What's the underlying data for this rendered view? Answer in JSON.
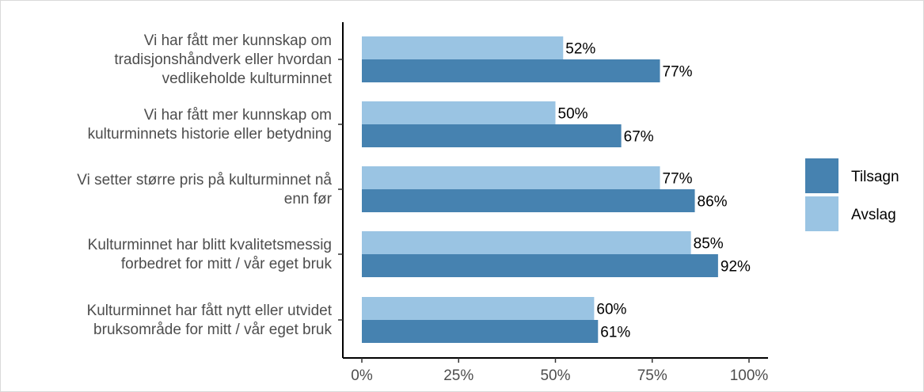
{
  "chart_data": {
    "type": "bar",
    "orientation": "horizontal",
    "title": "",
    "xlabel": "",
    "ylabel": "",
    "categories": [
      [
        "Vi har fått mer kunnskap om",
        "tradisjonshåndverk eller hvordan",
        "vedlikeholde kulturminnet"
      ],
      [
        "Vi har fått mer kunnskap om",
        "kulturminnets historie eller betydning"
      ],
      [
        "Vi setter større pris på kulturminnet nå",
        "enn før"
      ],
      [
        "Kulturminnet har blitt kvalitetsmessig",
        "forbedret for mitt / vår eget bruk"
      ],
      [
        "Kulturminnet har fått nytt eller utvidet",
        "bruksområde for mitt / vår eget bruk"
      ]
    ],
    "series": [
      {
        "name": "Tilsagn",
        "color": "#4682b0",
        "values": [
          77,
          67,
          86,
          92,
          61
        ]
      },
      {
        "name": "Avslag",
        "color": "#9ac4e3",
        "values": [
          52,
          50,
          77,
          85,
          60
        ]
      }
    ],
    "xlim": [
      0,
      100
    ],
    "x_ticks": [
      0,
      25,
      50,
      75,
      100
    ],
    "x_tick_labels": [
      "0%",
      "25%",
      "50%",
      "75%",
      "100%"
    ],
    "value_suffix": "%",
    "grid": false,
    "legend_position": "right"
  }
}
